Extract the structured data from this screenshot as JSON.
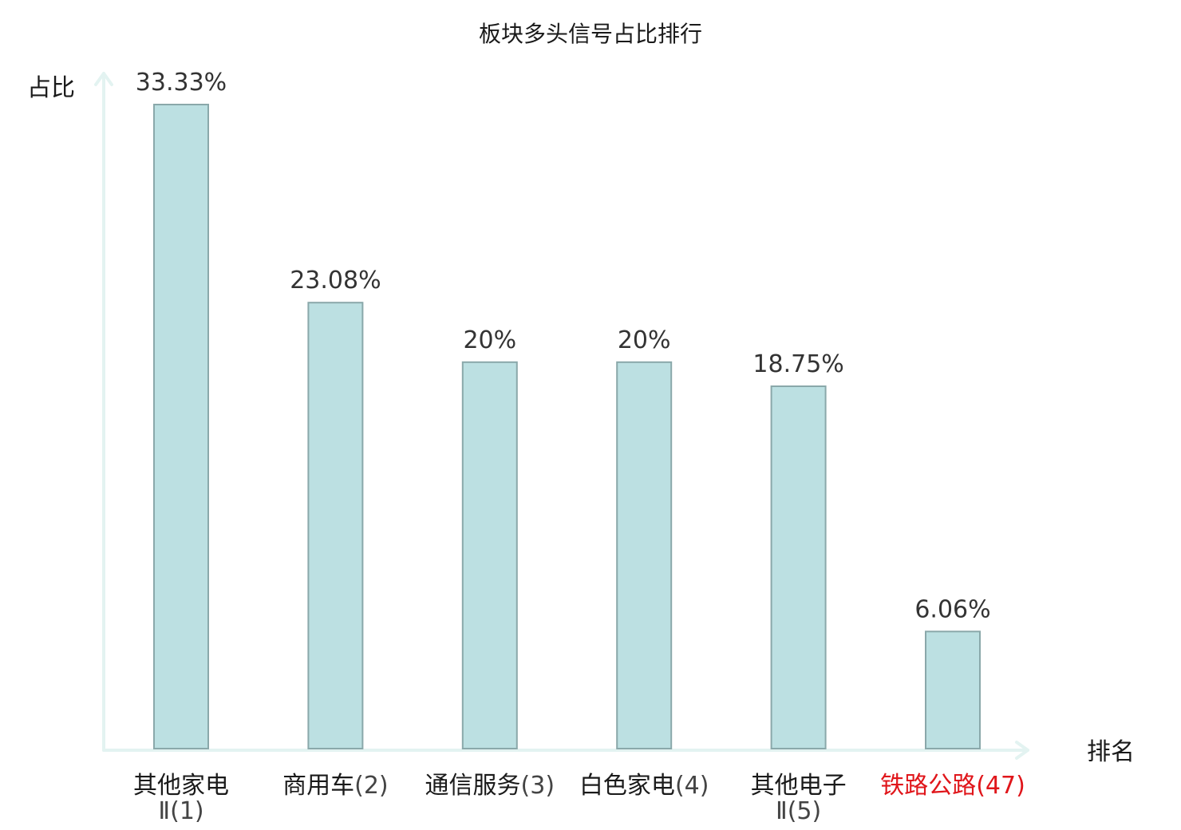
{
  "chart_data": {
    "type": "bar",
    "title": "板块多头信号占比排行",
    "ylabel": "占比",
    "xlabel": "排名",
    "categories": [
      {
        "name": "其他家电",
        "suffix": "Ⅱ(1)",
        "wrap": true,
        "highlight": false
      },
      {
        "name": "商用车",
        "suffix": "(2)",
        "wrap": false,
        "highlight": false
      },
      {
        "name": "通信服务",
        "suffix": "(3)",
        "wrap": false,
        "highlight": false
      },
      {
        "name": "白色家电",
        "suffix": "(4)",
        "wrap": false,
        "highlight": false
      },
      {
        "name": "其他电子",
        "suffix": "Ⅱ(5)",
        "wrap": true,
        "highlight": false
      },
      {
        "name": "铁路公路",
        "suffix": "(47)",
        "wrap": false,
        "highlight": true
      }
    ],
    "values": [
      33.33,
      23.08,
      20,
      20,
      18.75,
      6.06
    ],
    "value_labels": [
      "33.33%",
      "23.08%",
      "20%",
      "20%",
      "18.75%",
      "6.06%"
    ],
    "ylim": [
      0,
      33.33
    ],
    "grid": false,
    "colors": {
      "bar_fill": "#bce0e2",
      "bar_stroke": "#8aa8aa",
      "axis": "#e3f3f1",
      "label": "#1a1a1a",
      "value_label": "#333333",
      "suffix": "#444444",
      "highlight": "#e0161b"
    }
  }
}
